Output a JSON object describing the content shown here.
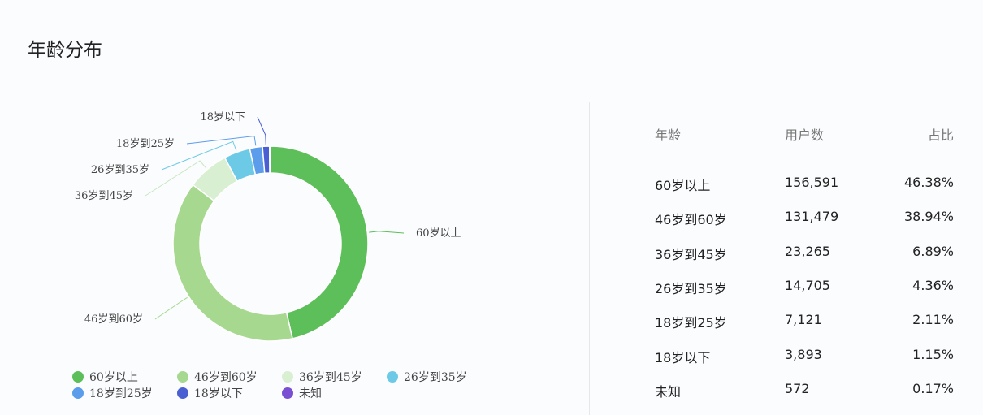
{
  "title": "年龄分布",
  "chart_data": {
    "type": "pie",
    "donut": true,
    "legend_position": "bottom",
    "slices": [
      {
        "label": "60岁以上",
        "value": 156591,
        "percent": 46.38,
        "color": "#5dbf5a"
      },
      {
        "label": "46岁到60岁",
        "value": 131479,
        "percent": 38.94,
        "color": "#a6d98f"
      },
      {
        "label": "36岁到45岁",
        "value": 23265,
        "percent": 6.89,
        "color": "#d8efd2"
      },
      {
        "label": "26岁到35岁",
        "value": 14705,
        "percent": 4.36,
        "color": "#6dcae6"
      },
      {
        "label": "18岁到25岁",
        "value": 7121,
        "percent": 2.11,
        "color": "#5c9deb"
      },
      {
        "label": "18岁以下",
        "value": 3893,
        "percent": 1.15,
        "color": "#4a60d2"
      },
      {
        "label": "未知",
        "value": 572,
        "percent": 0.17,
        "color": "#7a4fd2"
      }
    ]
  },
  "table": {
    "headers": [
      "年龄",
      "用户数",
      "占比"
    ],
    "rows": [
      [
        "60岁以上",
        "156,591",
        "46.38%"
      ],
      [
        "46岁到60岁",
        "131,479",
        "38.94%"
      ],
      [
        "36岁到45岁",
        "23,265",
        "6.89%"
      ],
      [
        "26岁到35岁",
        "14,705",
        "4.36%"
      ],
      [
        "18岁到25岁",
        "7,121",
        "2.11%"
      ],
      [
        "18岁以下",
        "3,893",
        "1.15%"
      ],
      [
        "未知",
        "572",
        "0.17%"
      ]
    ]
  }
}
